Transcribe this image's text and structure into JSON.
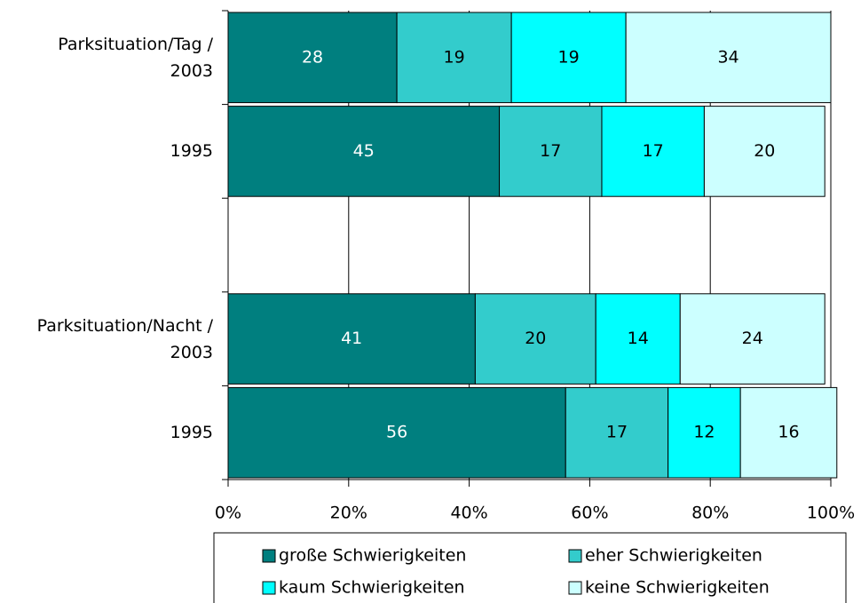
{
  "chart_data": {
    "type": "stacked-bar-horizontal",
    "categories": [
      "Parksituation/Tag /\n2003",
      "1995",
      null,
      "Parksituation/Nacht /\n2003",
      "1995"
    ],
    "series": [
      {
        "name": "große Schwierigkeiten",
        "color": "#007f7f",
        "values": [
          28,
          45,
          null,
          41,
          56
        ]
      },
      {
        "name": "eher Schwierigkeiten",
        "color": "#33cccc",
        "values": [
          19,
          17,
          null,
          20,
          17
        ]
      },
      {
        "name": "kaum Schwierigkeiten",
        "color": "#00ffff",
        "values": [
          19,
          17,
          null,
          14,
          12
        ]
      },
      {
        "name": "keine Schwierigkeiten",
        "color": "#ccffff",
        "values": [
          34,
          20,
          null,
          24,
          16
        ]
      }
    ],
    "xlim": [
      0,
      100
    ],
    "xticks": [
      {
        "value": 0,
        "label": "0%"
      },
      {
        "value": 20,
        "label": "20%"
      },
      {
        "value": 40,
        "label": "40%"
      },
      {
        "value": 60,
        "label": "60%"
      },
      {
        "value": 80,
        "label": "80%"
      },
      {
        "value": 100,
        "label": "100%"
      }
    ],
    "grid": true,
    "legend": "bottom"
  }
}
